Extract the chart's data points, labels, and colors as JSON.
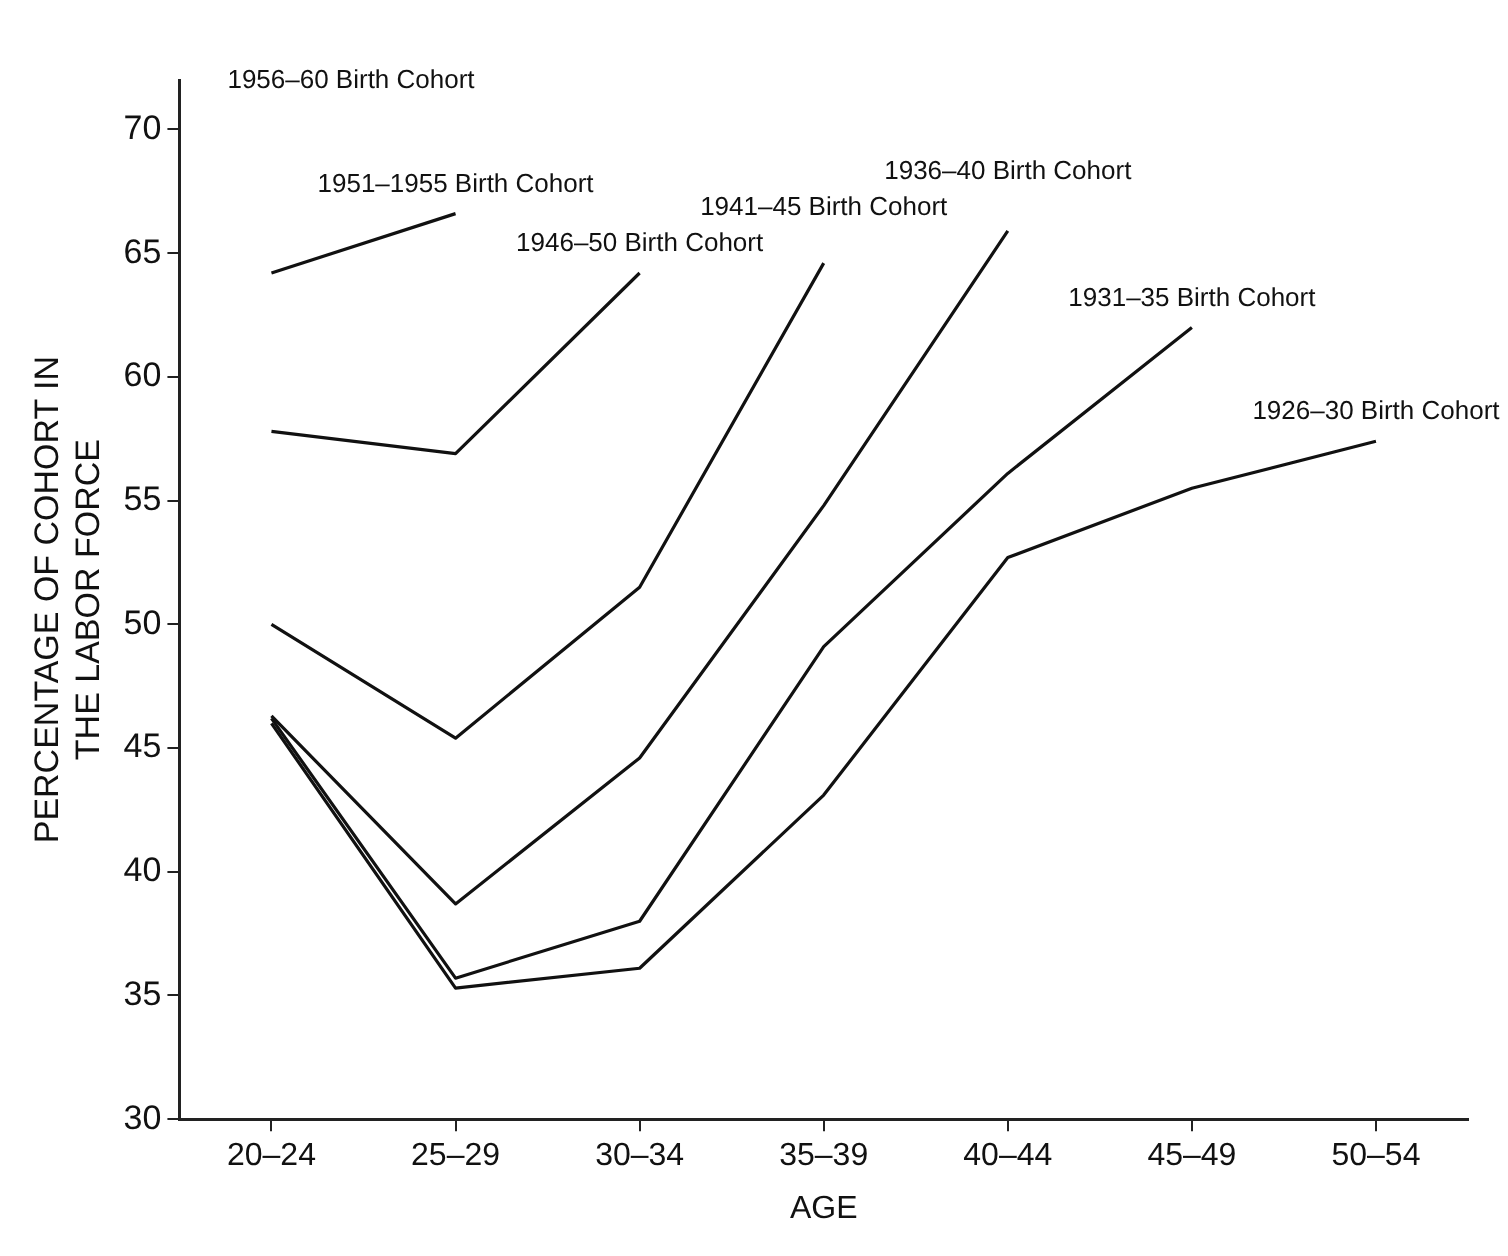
{
  "chart_data": {
    "type": "line",
    "xlabel": "AGE",
    "ylabel": "PERCENTAGE OF COHORT IN THE LABOR FORCE",
    "categories": [
      "20–24",
      "25–29",
      "30–34",
      "35–39",
      "40–44",
      "45–49",
      "50–54"
    ],
    "ylim": [
      30,
      72
    ],
    "yticks": [
      30,
      35,
      40,
      45,
      50,
      55,
      60,
      65,
      70
    ],
    "grid": false,
    "legend": false,
    "marker": "none",
    "line_style": "solid",
    "series": [
      {
        "name": "1951–1955 Birth Cohort",
        "color": "#111111",
        "values": [
          64.2,
          66.6,
          null,
          null,
          null,
          null,
          null
        ]
      },
      {
        "name": "1946–50 Birth Cohort",
        "color": "#111111",
        "values": [
          57.8,
          56.9,
          64.2,
          null,
          null,
          null,
          null
        ]
      },
      {
        "name": "1941–45 Birth Cohort",
        "color": "#111111",
        "values": [
          50.0,
          45.4,
          51.5,
          64.6,
          null,
          null,
          null
        ]
      },
      {
        "name": "1936–40 Birth Cohort",
        "color": "#111111",
        "values": [
          46.3,
          38.7,
          44.6,
          54.8,
          65.9,
          null,
          null
        ]
      },
      {
        "name": "1931–35 Birth Cohort",
        "color": "#111111",
        "values": [
          46.2,
          35.7,
          38.0,
          49.1,
          56.1,
          62.0,
          null
        ]
      },
      {
        "name": "1926–30 Birth Cohort",
        "color": "#111111",
        "values": [
          46.0,
          35.3,
          36.1,
          43.1,
          52.7,
          55.5,
          57.4
        ]
      }
    ],
    "annotations": [
      "1956–60 Birth Cohort"
    ]
  }
}
